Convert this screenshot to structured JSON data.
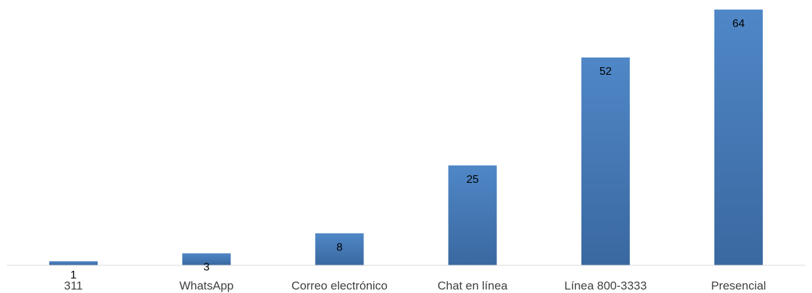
{
  "chart_data": {
    "type": "bar",
    "categories": [
      "311",
      "WhatsApp",
      "Correo electrónico",
      "Chat en línea",
      "Línea 800-3333",
      "Presencial"
    ],
    "values": [
      1,
      3,
      8,
      25,
      52,
      64
    ],
    "title": "",
    "xlabel": "",
    "ylabel": "",
    "ylim": [
      0,
      65
    ],
    "grid": false,
    "legend": "none",
    "data_labels": true,
    "colors": {
      "bar_top": "#4f87c7",
      "bar_bottom": "#3a68a0",
      "axis": "#d9d9d9",
      "label_text": "#000000",
      "tick_text": "#404040"
    }
  }
}
